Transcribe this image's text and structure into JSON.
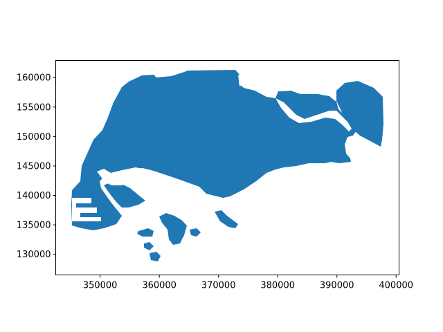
{
  "chart_data": {
    "type": "map",
    "title": "",
    "xlabel": "",
    "ylabel": "",
    "xlim": [
      342500,
      400500
    ],
    "ylim": [
      126500,
      162900
    ],
    "x_ticks": [
      350000,
      360000,
      370000,
      380000,
      390000,
      400000
    ],
    "x_tick_labels": [
      "350000",
      "360000",
      "370000",
      "380000",
      "390000",
      "400000"
    ],
    "y_ticks": [
      130000,
      135000,
      140000,
      145000,
      150000,
      155000,
      160000
    ],
    "y_tick_labels": [
      "130000",
      "135000",
      "140000",
      "145000",
      "150000",
      "155000",
      "160000"
    ],
    "fill_color": "#1f77b4",
    "water_color": "#ffffff",
    "grid": false
  }
}
